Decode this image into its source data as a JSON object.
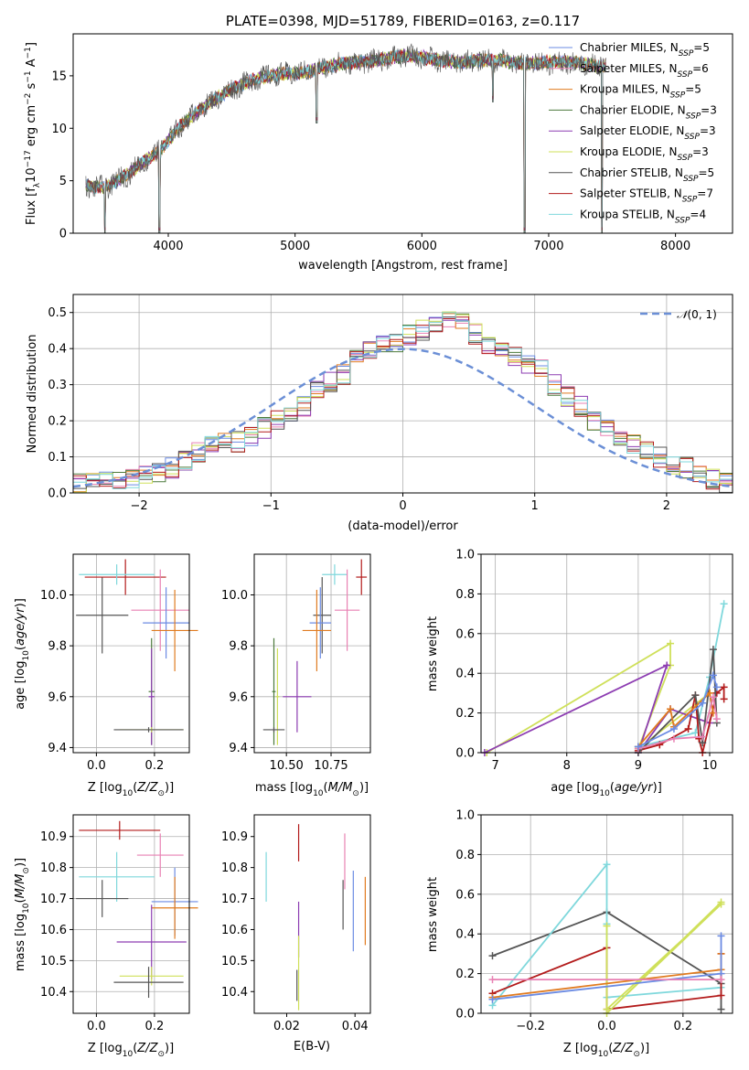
{
  "chart_data": [
    {
      "id": "spectrum",
      "type": "line",
      "title": "PLATE=0398, MJD=51789, FIBERID=0163, z=0.117",
      "xlabel": "wavelength [Angstrom, rest frame]",
      "ylabel": "Flux [f_λ 10^-17 erg cm^-2 s^-1 A^-1]",
      "xlim": [
        3250,
        8450
      ],
      "ylim": [
        0,
        19
      ],
      "xticks": [
        "4000",
        "5000",
        "6000",
        "7000",
        "8000"
      ],
      "yticks": [
        "0",
        "5",
        "10",
        "15"
      ],
      "envelope": {
        "x": [
          3350,
          3500,
          3600,
          3700,
          3800,
          3900,
          4000,
          4100,
          4200,
          4300,
          4400,
          4500,
          4600,
          4700,
          4800,
          4900,
          5000,
          5100,
          5200,
          5300,
          5400,
          5500,
          5600,
          5700,
          5800,
          5900,
          6000,
          6100,
          6200,
          6300,
          6400,
          6500,
          6600,
          6700,
          6800,
          6900,
          7000,
          7100,
          7200,
          7300,
          7400,
          7450
        ],
        "y": [
          4.5,
          4.3,
          5.0,
          5.8,
          6.8,
          7.5,
          8.8,
          10.3,
          11.3,
          12.2,
          13.0,
          13.7,
          14.3,
          14.7,
          15.0,
          15.2,
          15.2,
          15.4,
          15.7,
          16.0,
          16.2,
          16.3,
          16.4,
          16.6,
          16.8,
          16.9,
          16.8,
          16.5,
          16.4,
          16.3,
          16.4,
          16.5,
          16.5,
          16.3,
          16.2,
          16.2,
          16.3,
          16.3,
          16.3,
          16.1,
          15.9,
          16.0
        ]
      },
      "dips": [
        {
          "x": 3500,
          "y": 0
        },
        {
          "x": 3930,
          "y": 0
        },
        {
          "x": 5170,
          "y": 10.5
        },
        {
          "x": 6560,
          "y": 12.5
        },
        {
          "x": 6810,
          "y": 0
        },
        {
          "x": 7420,
          "y": 0
        }
      ],
      "series": [
        {
          "name": "Chabrier MILES, N_SSP=5",
          "color": "#6b8be3"
        },
        {
          "name": "Salpeter MILES, N_SSP=6",
          "color": "#e881b3"
        },
        {
          "name": "Kroupa MILES, N_SSP=5",
          "color": "#e07b20"
        },
        {
          "name": "Chabrier ELODIE, N_SSP=3",
          "color": "#4c7a3b"
        },
        {
          "name": "Salpeter ELODIE, N_SSP=3",
          "color": "#8d3db2"
        },
        {
          "name": "Kroupa ELODIE, N_SSP=3",
          "color": "#cfe05a"
        },
        {
          "name": "Chabrier STELIB, N_SSP=5",
          "color": "#555555"
        },
        {
          "name": "Salpeter STELIB, N_SSP=7",
          "color": "#b31b1b"
        },
        {
          "name": "Kroupa STELIB, N_SSP=4",
          "color": "#7fd8dc"
        }
      ]
    },
    {
      "id": "residuals",
      "type": "histogram",
      "xlabel": "(data-model)/error",
      "ylabel": "Normed distribution",
      "xlim": [
        -2.5,
        2.5
      ],
      "ylim": [
        0,
        0.55
      ],
      "xticks": [
        "−2",
        "−1",
        "0",
        "1",
        "2"
      ],
      "yticks": [
        "0.0",
        "0.1",
        "0.2",
        "0.3",
        "0.4",
        "0.5"
      ],
      "legend": "N(0,1)",
      "bin_width": 0.1,
      "bins_from": -2.5,
      "reference_profile": [
        0.03,
        0.028,
        0.03,
        0.035,
        0.04,
        0.05,
        0.06,
        0.07,
        0.09,
        0.11,
        0.13,
        0.14,
        0.14,
        0.16,
        0.18,
        0.2,
        0.22,
        0.24,
        0.28,
        0.31,
        0.33,
        0.37,
        0.39,
        0.41,
        0.42,
        0.44,
        0.45,
        0.47,
        0.48,
        0.47,
        0.44,
        0.41,
        0.39,
        0.38,
        0.36,
        0.34,
        0.3,
        0.27,
        0.24,
        0.2,
        0.18,
        0.15,
        0.14,
        0.12,
        0.1,
        0.08,
        0.07,
        0.05,
        0.04,
        0.03
      ]
    },
    {
      "id": "age-vs-Z",
      "type": "errorbar",
      "xlabel": "Z [log10(Z/Z⊙)]",
      "ylabel": "age  [log10(age/yr)]",
      "xlim": [
        -0.08,
        0.32
      ],
      "ylim": [
        9.38,
        10.16
      ],
      "xticks": [
        "0.0",
        "0.2"
      ],
      "yticks": [
        "9.4",
        "9.6",
        "9.8",
        "10.0"
      ],
      "points": [
        {
          "x": 0.02,
          "y": 9.92,
          "xerr": 0.09,
          "yerr": 0.15,
          "color": "#555555"
        },
        {
          "x": 0.1,
          "y": 10.07,
          "xerr": 0.14,
          "yerr": 0.07,
          "color": "#b31b1b"
        },
        {
          "x": 0.07,
          "y": 10.08,
          "xerr": 0.13,
          "yerr": 0.04,
          "color": "#7fd8dc"
        },
        {
          "x": 0.22,
          "y": 9.94,
          "xerr": 0.1,
          "yerr": 0.16,
          "color": "#e881b3"
        },
        {
          "x": 0.24,
          "y": 9.89,
          "xerr": 0.08,
          "yerr": 0.14,
          "color": "#6b8be3"
        },
        {
          "x": 0.27,
          "y": 9.86,
          "xerr": 0.08,
          "yerr": 0.16,
          "color": "#e07b20"
        },
        {
          "x": 0.19,
          "y": 9.62,
          "xerr": 0.01,
          "yerr": 0.21,
          "color": "#4c7a3b"
        },
        {
          "x": 0.19,
          "y": 9.6,
          "xerr": 0.01,
          "yerr": 0.19,
          "color": "#8d3db2"
        },
        {
          "x": 0.19,
          "y": 9.47,
          "xerr": 0.11,
          "yerr": 0.01,
          "color": "#cfe05a"
        },
        {
          "x": 0.18,
          "y": 9.47,
          "xerr": 0.12,
          "yerr": 0.01,
          "color": "#555555"
        }
      ]
    },
    {
      "id": "age-vs-mass",
      "type": "errorbar",
      "xlabel": "mass [log10(M/M⊙)]",
      "ylabel": "",
      "xlim": [
        10.32,
        10.97
      ],
      "ylim": [
        9.38,
        10.16
      ],
      "xticks": [
        "10.50",
        "10.75"
      ],
      "yticks": [
        "9.4",
        "9.6",
        "9.8",
        "10.0"
      ],
      "points": [
        {
          "x": 10.7,
          "y": 9.92,
          "xerr": 0.05,
          "yerr": 0.15,
          "color": "#555555"
        },
        {
          "x": 10.92,
          "y": 10.07,
          "xerr": 0.03,
          "yerr": 0.07,
          "color": "#b31b1b"
        },
        {
          "x": 10.77,
          "y": 10.08,
          "xerr": 0.07,
          "yerr": 0.04,
          "color": "#7fd8dc"
        },
        {
          "x": 10.84,
          "y": 9.94,
          "xerr": 0.07,
          "yerr": 0.16,
          "color": "#e881b3"
        },
        {
          "x": 10.69,
          "y": 9.89,
          "xerr": 0.06,
          "yerr": 0.14,
          "color": "#6b8be3"
        },
        {
          "x": 10.67,
          "y": 9.86,
          "xerr": 0.08,
          "yerr": 0.16,
          "color": "#e07b20"
        },
        {
          "x": 10.43,
          "y": 9.62,
          "xerr": 0.01,
          "yerr": 0.21,
          "color": "#4c7a3b"
        },
        {
          "x": 10.56,
          "y": 9.6,
          "xerr": 0.08,
          "yerr": 0.14,
          "color": "#8d3db2"
        },
        {
          "x": 10.45,
          "y": 9.6,
          "xerr": 0.01,
          "yerr": 0.19,
          "color": "#cfe05a"
        },
        {
          "x": 10.43,
          "y": 9.47,
          "xerr": 0.06,
          "yerr": 0.01,
          "color": "#555555"
        }
      ]
    },
    {
      "id": "weight-vs-age",
      "type": "line",
      "xlabel": "age  [log10(age/yr)]",
      "ylabel": "mass weight",
      "xlim": [
        6.8,
        10.32
      ],
      "ylim": [
        0,
        1.0
      ],
      "xticks": [
        "7",
        "8",
        "9",
        "10"
      ],
      "yticks": [
        "0.0",
        "0.2",
        "0.4",
        "0.6",
        "0.8",
        "1.0"
      ],
      "series": [
        {
          "color": "#cfe05a",
          "x": [
            6.88,
            9.45,
            9.45,
            9.0,
            10.0
          ],
          "y": [
            0.0,
            0.55,
            0.44,
            0.02,
            0.3
          ]
        },
        {
          "color": "#8d3db2",
          "x": [
            6.85,
            9.4,
            9.0,
            9.45,
            10.0
          ],
          "y": [
            0.0,
            0.44,
            0.0,
            0.22,
            0.15
          ]
        },
        {
          "color": "#7fd8dc",
          "x": [
            9.0,
            9.8,
            10.0,
            10.2
          ],
          "y": [
            0.03,
            0.1,
            0.38,
            0.75
          ]
        },
        {
          "color": "#b31b1b",
          "x": [
            9.0,
            9.3,
            9.7,
            9.8,
            9.85,
            9.9,
            10.1,
            10.2,
            10.2
          ],
          "y": [
            0.01,
            0.04,
            0.12,
            0.29,
            0.07,
            0.0,
            0.3,
            0.33,
            0.27
          ]
        },
        {
          "color": "#555555",
          "x": [
            9.0,
            9.8,
            9.9,
            10.05,
            10.1
          ],
          "y": [
            0.0,
            0.29,
            0.05,
            0.52,
            0.15
          ]
        },
        {
          "color": "#e07b20",
          "x": [
            9.0,
            9.45,
            9.5,
            10.0,
            10.05
          ],
          "y": [
            0.03,
            0.22,
            0.13,
            0.3,
            0.2
          ]
        },
        {
          "color": "#e881b3",
          "x": [
            9.0,
            9.5,
            9.9,
            10.05,
            10.1
          ],
          "y": [
            0.02,
            0.07,
            0.08,
            0.28,
            0.17
          ]
        },
        {
          "color": "#6b8be3",
          "x": [
            9.0,
            9.5,
            9.9,
            10.05,
            10.1
          ],
          "y": [
            0.03,
            0.12,
            0.25,
            0.39,
            0.33
          ]
        }
      ]
    },
    {
      "id": "mass-vs-Z",
      "type": "errorbar",
      "xlabel": "Z [log10(Z/Z⊙)]",
      "ylabel": "mass [log10(M/M⊙)]",
      "xlim": [
        -0.08,
        0.32
      ],
      "ylim": [
        10.33,
        10.97
      ],
      "xticks": [
        "0.0",
        "0.2"
      ],
      "yticks": [
        "10.4",
        "10.5",
        "10.6",
        "10.7",
        "10.8",
        "10.9"
      ],
      "points": [
        {
          "x": 0.08,
          "y": 10.92,
          "xerr": 0.14,
          "yerr": 0.03,
          "color": "#b31b1b"
        },
        {
          "x": 0.22,
          "y": 10.84,
          "xerr": 0.08,
          "yerr": 0.07,
          "color": "#e881b3"
        },
        {
          "x": 0.07,
          "y": 10.77,
          "xerr": 0.13,
          "yerr": 0.08,
          "color": "#7fd8dc"
        },
        {
          "x": 0.02,
          "y": 10.7,
          "xerr": 0.09,
          "yerr": 0.06,
          "color": "#555555"
        },
        {
          "x": 0.27,
          "y": 10.69,
          "xerr": 0.08,
          "yerr": 0.11,
          "color": "#6b8be3"
        },
        {
          "x": 0.27,
          "y": 10.67,
          "xerr": 0.08,
          "yerr": 0.1,
          "color": "#e07b20"
        },
        {
          "x": 0.19,
          "y": 10.56,
          "xerr": 0.12,
          "yerr": 0.12,
          "color": "#8d3db2"
        },
        {
          "x": 0.19,
          "y": 10.45,
          "xerr": 0.11,
          "yerr": 0.03,
          "color": "#cfe05a"
        },
        {
          "x": 0.18,
          "y": 10.43,
          "xerr": 0.12,
          "yerr": 0.05,
          "color": "#555555"
        }
      ]
    },
    {
      "id": "mass-vs-EBV",
      "type": "errorbar",
      "xlabel": "E(B-V)",
      "ylabel": "",
      "xlim": [
        0.0105,
        0.0445
      ],
      "ylim": [
        10.33,
        10.97
      ],
      "xticks": [
        "0.02",
        "0.04"
      ],
      "yticks": [
        "10.4",
        "10.5",
        "10.6",
        "10.7",
        "10.8",
        "10.9"
      ],
      "points": [
        {
          "x": 0.0235,
          "y": 10.88,
          "xerr": 0,
          "yerr": 0.06,
          "color": "#b31b1b"
        },
        {
          "x": 0.037,
          "y": 10.82,
          "xerr": 0,
          "yerr": 0.09,
          "color": "#e881b3"
        },
        {
          "x": 0.014,
          "y": 10.77,
          "xerr": 0,
          "yerr": 0.08,
          "color": "#7fd8dc"
        },
        {
          "x": 0.0365,
          "y": 10.68,
          "xerr": 0,
          "yerr": 0.08,
          "color": "#555555"
        },
        {
          "x": 0.0395,
          "y": 10.66,
          "xerr": 0,
          "yerr": 0.13,
          "color": "#6b8be3"
        },
        {
          "x": 0.043,
          "y": 10.66,
          "xerr": 0,
          "yerr": 0.11,
          "color": "#e07b20"
        },
        {
          "x": 0.0235,
          "y": 10.6,
          "xerr": 0,
          "yerr": 0.09,
          "color": "#8d3db2"
        },
        {
          "x": 0.0235,
          "y": 10.46,
          "xerr": 0,
          "yerr": 0.12,
          "color": "#cfe05a"
        },
        {
          "x": 0.023,
          "y": 10.42,
          "xerr": 0,
          "yerr": 0.05,
          "color": "#555555"
        }
      ]
    },
    {
      "id": "weight-vs-Z",
      "type": "line",
      "xlabel": "Z [log10(Z/Z⊙)]",
      "ylabel": "mass weight",
      "xlim": [
        -0.33,
        0.33
      ],
      "ylim": [
        0,
        1.0
      ],
      "xticks": [
        "−0.2",
        "0.0",
        "0.2"
      ],
      "yticks": [
        "0.0",
        "0.2",
        "0.4",
        "0.6",
        "0.8",
        "1.0"
      ],
      "series": [
        {
          "color": "#555555",
          "x": [
            -0.3,
            0.0,
            0.3,
            0.3
          ],
          "y": [
            0.29,
            0.51,
            0.15,
            0.02
          ]
        },
        {
          "color": "#7fd8dc",
          "x": [
            -0.3,
            0.0,
            0.0,
            0.0,
            0.3
          ],
          "y": [
            0.04,
            0.75,
            0.45,
            0.08,
            0.13
          ]
        },
        {
          "color": "#b31b1b",
          "x": [
            -0.3,
            0.0,
            0.0,
            0.3,
            0.3
          ],
          "y": [
            0.1,
            0.33,
            0.02,
            0.09,
            0.3
          ]
        },
        {
          "color": "#cfe05a",
          "x": [
            0.0,
            0.0,
            0.3,
            0.0,
            0.3
          ],
          "y": [
            0.44,
            0.02,
            0.55,
            0.0,
            0.56
          ]
        },
        {
          "color": "#e07b20",
          "x": [
            -0.3,
            0.3,
            0.3
          ],
          "y": [
            0.08,
            0.22,
            0.3
          ]
        },
        {
          "color": "#6b8be3",
          "x": [
            -0.3,
            0.3,
            0.3
          ],
          "y": [
            0.07,
            0.2,
            0.39
          ]
        },
        {
          "color": "#e881b3",
          "x": [
            -0.3,
            0.3
          ],
          "y": [
            0.17,
            0.17
          ]
        }
      ]
    }
  ]
}
